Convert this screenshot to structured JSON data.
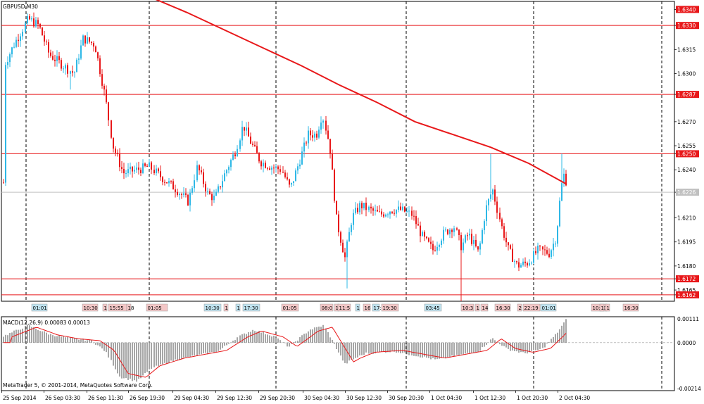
{
  "window": {
    "title": "GBPUSD,M30"
  },
  "indicator": {
    "label": "MACD(12,26,9) 0.00083 0.00013"
  },
  "copyright": "MetaTrader 5, © 2001-2014, MetaQuotes Software Corp.",
  "colors": {
    "bull": "#2eb8e6",
    "bear": "#e8181a",
    "ma": "#e8181a",
    "hline": "#e8181a",
    "bid_line": "#c0c0c0",
    "macd_hist": "#808080",
    "macd_signal": "#e8181a",
    "grid": "#000000",
    "event_tag_bg": "#f4c7c7",
    "event_tag_alt_bg": "#bfe3f0"
  },
  "price_scale": {
    "labels": [
      "1.6340",
      "1.6330",
      "1.6315",
      "1.6300",
      "1.6287",
      "1.6270",
      "1.6255",
      "1.6250",
      "1.6240",
      "1.6226",
      "1.6210",
      "1.6195",
      "1.6180",
      "1.6172",
      "1.6165",
      "1.6162"
    ],
    "highlighted": [
      "1.6340",
      "1.6330",
      "1.6287",
      "1.6250",
      "1.6172",
      "1.6162"
    ],
    "current": "1.6226"
  },
  "macd_scale": {
    "labels": [
      "0.00111",
      "0.0000",
      "-0.00214"
    ]
  },
  "time_axis": {
    "labels": [
      "25 Sep 2014",
      "26 Sep 03:30",
      "26 Sep 11:30",
      "26 Sep 19:30",
      "29 Sep 04:30",
      "29 Sep 12:30",
      "29 Sep 20:30",
      "30 Sep 04:30",
      "30 Sep 12:30",
      "30 Sep 20:30",
      "1 Oct 04:30",
      "1 Oct 12:30",
      "1 Oct 20:30",
      "2 Oct 04:30"
    ]
  },
  "event_tags": [
    "01:01",
    "10:30",
    "1",
    "15:55",
    "18",
    "01:05",
    "10:30",
    "1",
    "1",
    "17:30",
    "01:05",
    "08:0",
    "1",
    "11:5",
    "1",
    "16",
    "17:",
    "19:30",
    "03:45",
    "10:3",
    "1",
    "14",
    "16:30",
    "2",
    "22:19",
    "01:01",
    "10:30",
    "1",
    "1",
    "16:30"
  ],
  "chart_data": {
    "type": "candlestick",
    "symbol": "GBPUSD",
    "timeframe": "M30",
    "y_range": [
      1.6158,
      1.6345
    ],
    "horizontal_levels": [
      1.633,
      1.6287,
      1.625,
      1.6172,
      1.6162
    ],
    "current_price": 1.6226,
    "ma": [
      1.6348,
      1.6338,
      1.6327,
      1.6316,
      1.6305,
      1.6293,
      1.6282,
      1.627,
      1.6262,
      1.6254,
      1.6244,
      1.6231
    ],
    "macd_range": [
      -0.00214,
      0.00111
    ]
  }
}
